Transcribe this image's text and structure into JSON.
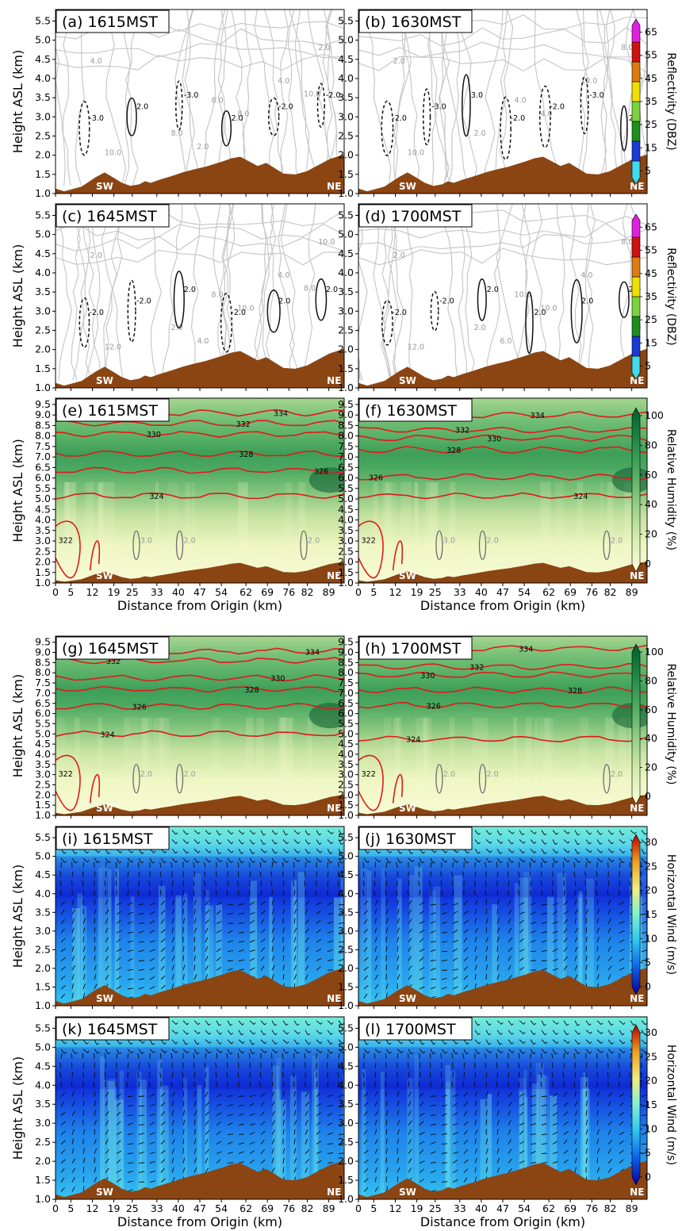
{
  "figure": {
    "colorbars": {
      "reflectivity": {
        "label": "Reflectivity (DBZ)",
        "ticks": [
          "5",
          "15",
          "25",
          "35",
          "45",
          "55",
          "65"
        ],
        "colors": [
          "#3fdcf0",
          "#1a3ad6",
          "#1d8e1d",
          "#7ad33c",
          "#f0e000",
          "#e07a10",
          "#d01010",
          "#e020e0"
        ]
      },
      "humidity": {
        "label": "Relative Humidity (%)",
        "ticks": [
          "0",
          "20",
          "40",
          "60",
          "80",
          "100"
        ],
        "colors": [
          "#fbfddb",
          "#d8edb0",
          "#98d08a",
          "#52ad62",
          "#218848",
          "#005d2c"
        ]
      },
      "wind": {
        "label": "Horizontal Wind (m/s)",
        "ticks": [
          "0",
          "5",
          "10",
          "15",
          "20",
          "25",
          "30"
        ],
        "colors": [
          "#0000a0",
          "#1060e8",
          "#30c8f0",
          "#80f0d0",
          "#f0f080",
          "#f0a020",
          "#b00000"
        ]
      }
    },
    "common": {
      "ylabel": "Height ASL (km)",
      "xlabel": "Distance from Origin (km)",
      "x_ticks": [
        "0",
        "5",
        "12",
        "19",
        "25",
        "33",
        "40",
        "47",
        "54",
        "62",
        "69",
        "76",
        "82",
        "89"
      ],
      "sw": "SW",
      "ne": "NE",
      "terrain_color": "#8b4513"
    },
    "panels": [
      {
        "id": "a",
        "title": "(a) 1615MST",
        "type": "reflectivity",
        "yticks": [
          "1.0",
          "1.5",
          "2.0",
          "2.5",
          "3.0",
          "3.5",
          "4.0",
          "4.5",
          "5.0",
          "5.5"
        ],
        "grey_labels": [
          "10.0",
          "8.0",
          "2.0",
          "8.0",
          "4.0",
          "10.0",
          "8.0",
          "4.0",
          "2.0",
          "10.0"
        ],
        "black_labels": [
          "-3.0",
          "2.0",
          "-3.0",
          "2.0",
          "-2.0",
          "-2.0"
        ]
      },
      {
        "id": "b",
        "title": "(b) 1630MST",
        "type": "reflectivity",
        "yticks": [
          "1.0",
          "1.5",
          "2.0",
          "2.5",
          "3.0",
          "3.5",
          "4.0",
          "4.5",
          "5.0",
          "5.5"
        ],
        "grey_labels": [
          "10.0",
          "4.0",
          "8.0",
          "2.0",
          "10.0",
          "8.0",
          "4.0",
          "2.0"
        ],
        "black_labels": [
          "-2.0",
          "-3.0",
          "3.0",
          "-2.0",
          "-2.0",
          "-3.0",
          "2.0"
        ]
      },
      {
        "id": "c",
        "title": "(c) 1645MST",
        "type": "reflectivity",
        "yticks": [
          "1.0",
          "1.5",
          "2.0",
          "2.5",
          "3.0",
          "3.5",
          "4.0",
          "4.5",
          "5.0",
          "5.5"
        ],
        "grey_labels": [
          "12.0",
          "8.0",
          "10.0",
          "2.0",
          "4.0",
          "8.0",
          "10.0",
          "2.0",
          "4.0",
          "8.0"
        ],
        "black_labels": [
          "-2.0",
          "-2.0",
          "2.0",
          "-2.0",
          "2.0",
          "2.0"
        ]
      },
      {
        "id": "d",
        "title": "(d) 1700MST",
        "type": "reflectivity",
        "yticks": [
          "1.0",
          "1.5",
          "2.0",
          "2.5",
          "3.0",
          "3.5",
          "4.0",
          "4.5",
          "5.0",
          "5.5"
        ],
        "grey_labels": [
          "12.0",
          "10.0",
          "8.0",
          "2.0",
          "4.0",
          "8.0",
          "10.0",
          "2.0",
          "6.0"
        ],
        "black_labels": [
          "-2.0",
          "-2.0",
          "2.0",
          "2.0",
          "2.0",
          "2.0"
        ]
      },
      {
        "id": "e",
        "title": "(e) 1615MST",
        "type": "humidity",
        "yticks": [
          "1.0",
          "1.5",
          "2.0",
          "2.5",
          "3.0",
          "3.5",
          "4.0",
          "4.5",
          "5.0",
          "5.5",
          "6.0",
          "6.5",
          "7.0",
          "7.5",
          "8.0",
          "8.5",
          "9.0",
          "9.5"
        ],
        "theta": [
          {
            "label": "334",
            "h": 9.1,
            "lx": 0.78
          },
          {
            "label": "332",
            "h": 8.6,
            "lx": 0.65
          },
          {
            "label": "330",
            "h": 8.1,
            "lx": 0.34
          },
          {
            "label": "328",
            "h": 7.15,
            "lx": 0.66
          },
          {
            "label": "326",
            "h": 6.35,
            "lx": 0.92
          },
          {
            "label": "324",
            "h": 5.15,
            "lx": 0.35
          }
        ],
        "theta_low": "322",
        "grey_labels": [
          "3.0",
          "2.0",
          "2.0"
        ]
      },
      {
        "id": "f",
        "title": "(f) 1630MST",
        "type": "humidity",
        "yticks": [
          "1.0",
          "1.5",
          "2.0",
          "2.5",
          "3.0",
          "3.5",
          "4.0",
          "4.5",
          "5.0",
          "5.5",
          "6.0",
          "6.5",
          "7.0",
          "7.5",
          "8.0",
          "8.5",
          "9.0",
          "9.5"
        ],
        "theta": [
          {
            "label": "334",
            "h": 9.0,
            "lx": 0.62
          },
          {
            "label": "332",
            "h": 8.3,
            "lx": 0.36
          },
          {
            "label": "330",
            "h": 7.9,
            "lx": 0.47
          },
          {
            "label": "328",
            "h": 7.35,
            "lx": 0.33
          },
          {
            "label": "326",
            "h": 6.05,
            "lx": 0.06
          },
          {
            "label": "324",
            "h": 5.15,
            "lx": 0.77
          }
        ],
        "theta_low": "322",
        "grey_labels": [
          "3.0",
          "2.0",
          "2.0"
        ]
      },
      {
        "id": "g",
        "title": "(g) 1645MST",
        "type": "humidity",
        "yticks": [
          "1.0",
          "1.5",
          "2.0",
          "2.5",
          "3.0",
          "3.5",
          "4.0",
          "4.5",
          "5.0",
          "5.5",
          "6.0",
          "6.5",
          "7.0",
          "7.5",
          "8.0",
          "8.5",
          "9.0",
          "9.5"
        ],
        "theta": [
          {
            "label": "334",
            "h": 9.05,
            "lx": 0.89
          },
          {
            "label": "332",
            "h": 8.6,
            "lx": 0.2
          },
          {
            "label": "330",
            "h": 7.75,
            "lx": 0.77
          },
          {
            "label": "328",
            "h": 7.2,
            "lx": 0.68
          },
          {
            "label": "326",
            "h": 6.35,
            "lx": 0.29
          },
          {
            "label": "324",
            "h": 5.0,
            "lx": 0.18
          }
        ],
        "theta_low": "322",
        "grey_labels": [
          "2.0",
          "2.0"
        ]
      },
      {
        "id": "h",
        "title": "(h) 1700MST",
        "type": "humidity",
        "yticks": [
          "1.0",
          "1.5",
          "2.0",
          "2.5",
          "3.0",
          "3.5",
          "4.0",
          "4.5",
          "5.0",
          "5.5",
          "6.0",
          "6.5",
          "7.0",
          "7.5",
          "8.0",
          "8.5",
          "9.0",
          "9.5"
        ],
        "theta": [
          {
            "label": "334",
            "h": 9.2,
            "lx": 0.58
          },
          {
            "label": "332",
            "h": 8.3,
            "lx": 0.41
          },
          {
            "label": "330",
            "h": 7.9,
            "lx": 0.24
          },
          {
            "label": "328",
            "h": 7.15,
            "lx": 0.75
          },
          {
            "label": "326",
            "h": 6.4,
            "lx": 0.26
          },
          {
            "label": "324",
            "h": 4.75,
            "lx": 0.19
          }
        ],
        "theta_low": "322",
        "grey_labels": [
          "2.0",
          "2.0",
          "2.0"
        ]
      },
      {
        "id": "i",
        "title": "(i) 1615MST",
        "type": "wind",
        "yticks": [
          "1.0",
          "1.5",
          "2.0",
          "2.5",
          "3.0",
          "3.5",
          "4.0",
          "4.5",
          "5.0",
          "5.5"
        ]
      },
      {
        "id": "j",
        "title": "(j) 1630MST",
        "type": "wind",
        "yticks": [
          "1.0",
          "1.5",
          "2.0",
          "2.5",
          "3.0",
          "3.5",
          "4.0",
          "4.5",
          "5.0",
          "5.5"
        ]
      },
      {
        "id": "k",
        "title": "(k) 1645MST",
        "type": "wind",
        "yticks": [
          "1.0",
          "1.5",
          "2.0",
          "2.5",
          "3.0",
          "3.5",
          "4.0",
          "4.5",
          "5.0",
          "5.5"
        ]
      },
      {
        "id": "l",
        "title": "(l) 1700MST",
        "type": "wind",
        "yticks": [
          "1.0",
          "1.5",
          "2.0",
          "2.5",
          "3.0",
          "3.5",
          "4.0",
          "4.5",
          "5.0",
          "5.5"
        ]
      }
    ]
  },
  "chart_data": [
    {
      "type": "heatmap",
      "title": "(a) 1615MST",
      "xlabel": "",
      "ylabel": "Height ASL (km)",
      "ylim": [
        1.0,
        5.8
      ],
      "colorbar": "Reflectivity (DBZ)",
      "colorbar_range": [
        5,
        65
      ],
      "legend": "right"
    },
    {
      "type": "heatmap",
      "title": "(b) 1630MST",
      "xlabel": "",
      "ylabel": "",
      "ylim": [
        1.0,
        5.8
      ],
      "colorbar": "Reflectivity (DBZ)",
      "colorbar_range": [
        5,
        65
      ],
      "legend": "right"
    },
    {
      "type": "heatmap",
      "title": "(c) 1645MST",
      "xlabel": "",
      "ylabel": "Height ASL (km)",
      "ylim": [
        1.0,
        5.8
      ],
      "colorbar": "Reflectivity (DBZ)",
      "colorbar_range": [
        5,
        65
      ],
      "legend": "right"
    },
    {
      "type": "heatmap",
      "title": "(d) 1700MST",
      "xlabel": "",
      "ylabel": "",
      "ylim": [
        1.0,
        5.8
      ],
      "colorbar": "Reflectivity (DBZ)",
      "colorbar_range": [
        5,
        65
      ],
      "legend": "right"
    },
    {
      "type": "heatmap",
      "title": "(e) 1615MST",
      "xlabel": "Distance from Origin (km)",
      "ylabel": "Height ASL (km)",
      "xlim": [
        0,
        94
      ],
      "ylim": [
        1.0,
        9.8
      ],
      "colorbar": "Relative Humidity (%)",
      "colorbar_range": [
        0,
        100
      ],
      "contours": [
        322,
        324,
        326,
        328,
        330,
        332,
        334
      ],
      "legend": "right"
    },
    {
      "type": "heatmap",
      "title": "(f) 1630MST",
      "xlabel": "Distance from Origin (km)",
      "ylabel": "",
      "xlim": [
        0,
        94
      ],
      "ylim": [
        1.0,
        9.8
      ],
      "colorbar": "Relative Humidity (%)",
      "colorbar_range": [
        0,
        100
      ],
      "contours": [
        322,
        324,
        326,
        328,
        330,
        332,
        334
      ],
      "legend": "right"
    },
    {
      "type": "heatmap",
      "title": "(g) 1645MST",
      "xlabel": "",
      "ylabel": "Height ASL (km)",
      "xlim": [
        0,
        94
      ],
      "ylim": [
        1.0,
        9.8
      ],
      "colorbar": "Relative Humidity (%)",
      "colorbar_range": [
        0,
        100
      ],
      "contours": [
        322,
        324,
        326,
        328,
        330,
        332,
        334
      ],
      "legend": "right"
    },
    {
      "type": "heatmap",
      "title": "(h) 1700MST",
      "xlabel": "",
      "ylabel": "",
      "xlim": [
        0,
        94
      ],
      "ylim": [
        1.0,
        9.8
      ],
      "colorbar": "Relative Humidity (%)",
      "colorbar_range": [
        0,
        100
      ],
      "contours": [
        322,
        324,
        326,
        328,
        330,
        332,
        334
      ],
      "legend": "right"
    },
    {
      "type": "heatmap",
      "title": "(i) 1615MST",
      "xlabel": "",
      "ylabel": "Height ASL (km)",
      "ylim": [
        1.0,
        5.8
      ],
      "colorbar": "Horizontal Wind (m/s)",
      "colorbar_range": [
        0,
        30
      ],
      "legend": "right"
    },
    {
      "type": "heatmap",
      "title": "(j) 1630MST",
      "xlabel": "",
      "ylabel": "",
      "ylim": [
        1.0,
        5.8
      ],
      "colorbar": "Horizontal Wind (m/s)",
      "colorbar_range": [
        0,
        30
      ],
      "legend": "right"
    },
    {
      "type": "heatmap",
      "title": "(k) 1645MST",
      "xlabel": "Distance from Origin (km)",
      "ylabel": "Height ASL (km)",
      "xlim": [
        0,
        94
      ],
      "ylim": [
        1.0,
        5.8
      ],
      "colorbar": "Horizontal Wind (m/s)",
      "colorbar_range": [
        0,
        30
      ],
      "legend": "right"
    },
    {
      "type": "heatmap",
      "title": "(l) 1700MST",
      "xlabel": "Distance from Origin (km)",
      "ylabel": "",
      "xlim": [
        0,
        94
      ],
      "ylim": [
        1.0,
        5.8
      ],
      "colorbar": "Horizontal Wind (m/s)",
      "colorbar_range": [
        0,
        30
      ],
      "legend": "right"
    }
  ]
}
